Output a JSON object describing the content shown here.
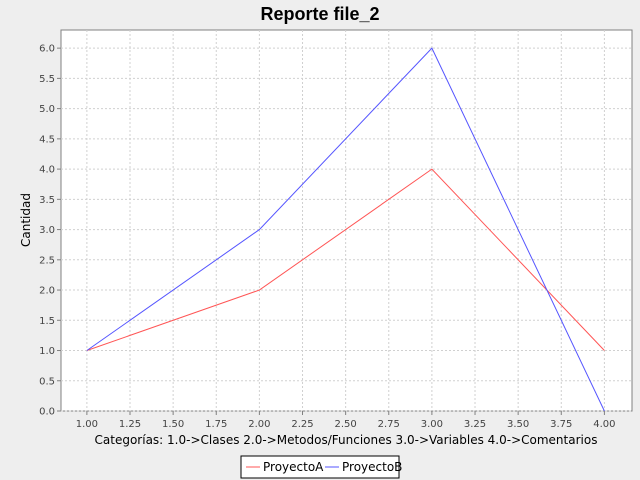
{
  "chart_data": {
    "type": "line",
    "title": "Reporte file_2",
    "xlabel": "Categorías: 1.0->Clases   2.0->Metodos/Funciones   3.0->Variables   4.0->Comentarios",
    "ylabel": "Cantidad",
    "x": [
      1.0,
      2.0,
      3.0,
      4.0
    ],
    "xlim": [
      0.85,
      4.16
    ],
    "ylim": [
      0.0,
      6.3
    ],
    "xticks": [
      "1.00",
      "1.25",
      "1.50",
      "1.75",
      "2.00",
      "2.25",
      "2.50",
      "2.75",
      "3.00",
      "3.25",
      "3.50",
      "3.75",
      "4.00"
    ],
    "yticks": [
      "0.0",
      "0.5",
      "1.0",
      "1.5",
      "2.0",
      "2.5",
      "3.0",
      "3.5",
      "4.0",
      "4.5",
      "5.0",
      "5.5",
      "6.0"
    ],
    "grid": true,
    "legend_position": "bottom",
    "series": [
      {
        "name": "ProyectoA",
        "color": "#ff5555",
        "values": [
          1.0,
          2.0,
          4.0,
          1.0
        ]
      },
      {
        "name": "ProyectoB",
        "color": "#5555ff",
        "values": [
          1.0,
          3.0,
          6.0,
          0.0
        ]
      }
    ]
  }
}
